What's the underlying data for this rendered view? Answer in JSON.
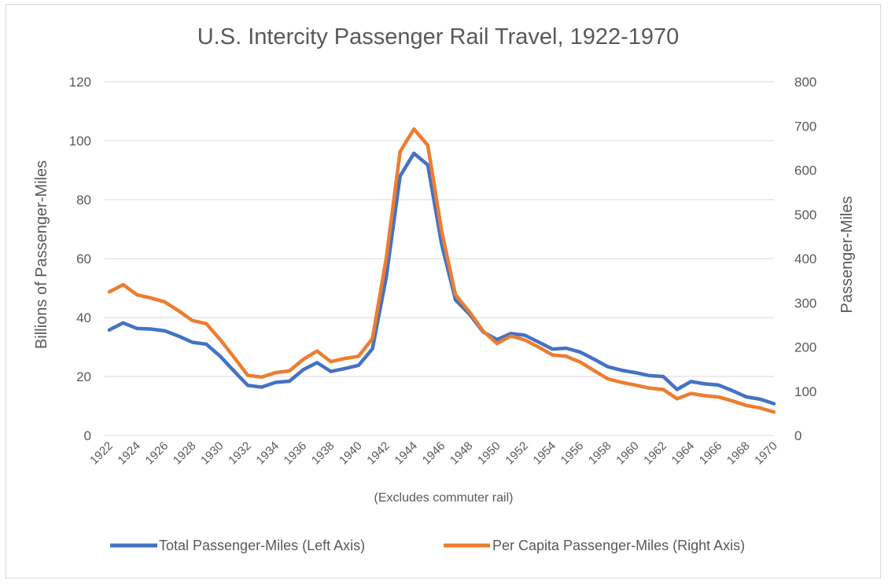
{
  "chart_data": {
    "type": "line",
    "title": "U.S. Intercity Passenger Rail Travel, 1922-1970",
    "note": "(Excludes commuter rail)",
    "ylabel_left": "Billions of Passenger-Miles",
    "ylabel_right": "Passenger-Miles",
    "ylim_left": [
      0,
      120
    ],
    "ylim_right": [
      0,
      800
    ],
    "yticks_left": [
      "0",
      "20",
      "40",
      "60",
      "80",
      "100",
      "120"
    ],
    "yticks_right": [
      "0",
      "100",
      "200",
      "300",
      "400",
      "500",
      "600",
      "700",
      "800"
    ],
    "grid": true,
    "legend_position": "bottom",
    "x": [
      1922,
      1923,
      1924,
      1925,
      1926,
      1927,
      1928,
      1929,
      1930,
      1931,
      1932,
      1933,
      1934,
      1935,
      1936,
      1937,
      1938,
      1939,
      1940,
      1941,
      1942,
      1943,
      1944,
      1945,
      1946,
      1947,
      1948,
      1949,
      1950,
      1951,
      1952,
      1953,
      1954,
      1955,
      1956,
      1957,
      1958,
      1959,
      1960,
      1961,
      1962,
      1963,
      1964,
      1965,
      1966,
      1967,
      1968,
      1969,
      1970
    ],
    "xtick_labels": [
      "1922",
      "1924",
      "1926",
      "1928",
      "1930",
      "1932",
      "1934",
      "1936",
      "1938",
      "1940",
      "1942",
      "1944",
      "1946",
      "1948",
      "1950",
      "1952",
      "1954",
      "1956",
      "1958",
      "1960",
      "1962",
      "1964",
      "1966",
      "1968",
      "1970"
    ],
    "series": [
      {
        "name": "Total Passenger-Miles (Left Axis)",
        "axis": "left",
        "color": "#4472C4",
        "values": [
          35.8,
          38.2,
          36.3,
          36.1,
          35.5,
          33.7,
          31.6,
          31.0,
          26.9,
          21.9,
          17.0,
          16.4,
          18.0,
          18.4,
          22.3,
          24.7,
          21.7,
          22.7,
          23.8,
          29.4,
          53.7,
          88.0,
          95.7,
          91.8,
          64.8,
          46.0,
          41.2,
          35.1,
          32.5,
          34.6,
          34.0,
          31.7,
          29.3,
          29.6,
          28.3,
          25.9,
          23.3,
          22.1,
          21.3,
          20.3,
          20.0,
          15.6,
          18.3,
          17.5,
          17.1,
          15.2,
          13.1,
          12.3,
          10.8
        ]
      },
      {
        "name": "Per Capita Passenger-Miles (Right Axis)",
        "axis": "right",
        "color": "#ED7D31",
        "values": [
          325,
          341,
          318,
          311,
          302,
          282,
          260,
          253,
          217,
          177,
          136,
          132,
          142,
          146,
          172,
          191,
          167,
          174,
          179,
          219,
          401,
          642,
          693,
          656,
          462,
          318,
          280,
          236,
          208,
          225,
          216,
          200,
          182,
          179,
          166,
          147,
          128,
          120,
          114,
          107,
          104,
          83,
          95,
          90,
          87,
          78,
          68,
          62,
          53
        ]
      }
    ]
  }
}
